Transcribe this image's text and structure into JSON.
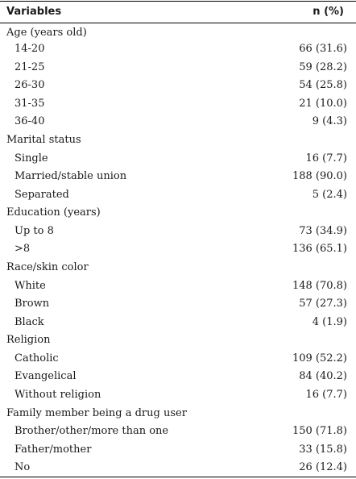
{
  "header": {
    "variables_label": "Variables",
    "n_label": "n (%)"
  },
  "rows": [
    {
      "label": "Age (years old)",
      "value": ""
    },
    {
      "label": "14-20",
      "value": "66 (31.6)"
    },
    {
      "label": "21-25",
      "value": "59 (28.2)"
    },
    {
      "label": "26-30",
      "value": "54 (25.8)"
    },
    {
      "label": "31-35",
      "value": "21 (10.0)"
    },
    {
      "label": "36-40",
      "value": "9 (4.3)"
    },
    {
      "label": "Marital status",
      "value": ""
    },
    {
      "label": "Single",
      "value": "16 (7.7)"
    },
    {
      "label": "Married/stable union",
      "value": "188 (90.0)"
    },
    {
      "label": "Separated",
      "value": "5 (2.4)"
    },
    {
      "label": "Education (years)",
      "value": ""
    },
    {
      "label": "Up to 8",
      "value": "73 (34.9)"
    },
    {
      "label": ">8",
      "value": "136 (65.1)"
    },
    {
      "label": "Race/skin color",
      "value": ""
    },
    {
      "label": "White",
      "value": "148 (70.8)"
    },
    {
      "label": "Brown",
      "value": "57 (27.3)"
    },
    {
      "label": "Black",
      "value": "4 (1.9)"
    },
    {
      "label": "Religion",
      "value": ""
    },
    {
      "label": "Catholic",
      "value": "109 (52.2)"
    },
    {
      "label": "Evangelical",
      "value": "84 (40.2)"
    },
    {
      "label": "Without religion",
      "value": "16 (7.7)"
    },
    {
      "label": "Family member being a drug user",
      "value": ""
    },
    {
      "label": "Brother/other/more than one",
      "value": "150 (71.8)"
    },
    {
      "label": "Father/mother",
      "value": "33 (15.8)"
    },
    {
      "label": "No",
      "value": "26 (12.4)"
    }
  ]
}
